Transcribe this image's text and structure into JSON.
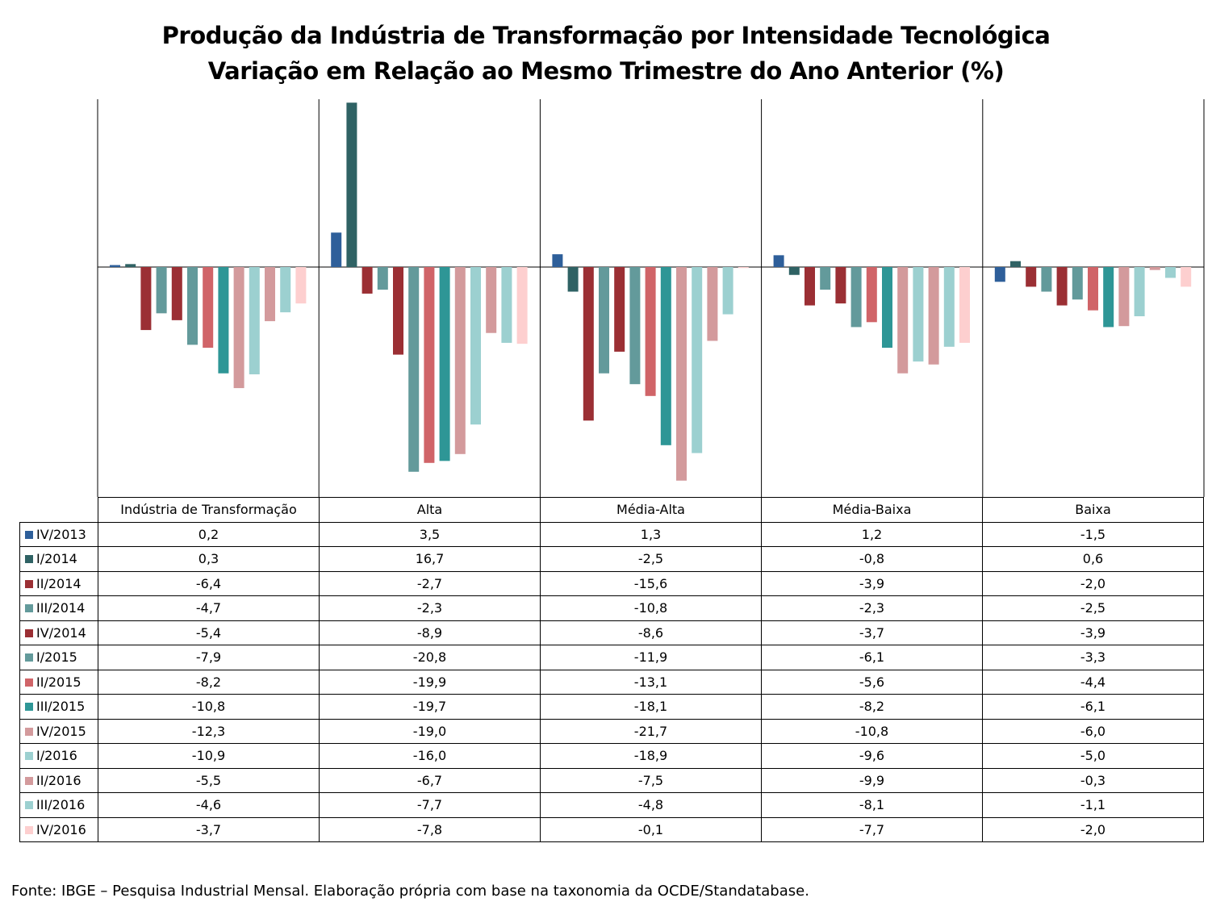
{
  "chart_data": {
    "type": "bar",
    "title": "Produção da Indústria de Transformação por Intensidade Tecnológica",
    "subtitle": "Variação em Relação ao Mesmo Trimestre do Ano Anterior (%)",
    "categories": [
      "Indústria de Transformação",
      "Alta",
      "Média-Alta",
      "Média-Baixa",
      "Baixa"
    ],
    "ylim": [
      -22,
      16.7
    ],
    "grid": false,
    "legend": "table-left",
    "series": [
      {
        "name": "IV/2013",
        "color": "#2e5f9a",
        "values": [
          "0,2",
          "3,5",
          "1,3",
          "1,2",
          "-1,5"
        ]
      },
      {
        "name": "I/2014",
        "color": "#2f6264",
        "values": [
          "0,3",
          "16,7",
          "-2,5",
          "-0,8",
          "0,6"
        ]
      },
      {
        "name": "II/2014",
        "color": "#9b2f34",
        "values": [
          "-6,4",
          "-2,7",
          "-15,6",
          "-3,9",
          "-2,0"
        ]
      },
      {
        "name": "III/2014",
        "color": "#639a9b",
        "values": [
          "-4,7",
          "-2,3",
          "-10,8",
          "-2,3",
          "-2,5"
        ]
      },
      {
        "name": "IV/2014",
        "color": "#9b2f34",
        "values": [
          "-5,4",
          "-8,9",
          "-8,6",
          "-3,7",
          "-3,9"
        ]
      },
      {
        "name": "I/2015",
        "color": "#639a9b",
        "values": [
          "-7,9",
          "-20,8",
          "-11,9",
          "-6,1",
          "-3,3"
        ]
      },
      {
        "name": "II/2015",
        "color": "#d06468",
        "values": [
          "-8,2",
          "-19,9",
          "-13,1",
          "-5,6",
          "-4,4"
        ]
      },
      {
        "name": "III/2015",
        "color": "#2e9696",
        "values": [
          "-10,8",
          "-19,7",
          "-18,1",
          "-8,2",
          "-6,1"
        ]
      },
      {
        "name": "IV/2015",
        "color": "#d39a9c",
        "values": [
          "-12,3",
          "-19,0",
          "-21,7",
          "-10,8",
          "-6,0"
        ]
      },
      {
        "name": "I/2016",
        "color": "#9cd0d0",
        "values": [
          "-10,9",
          "-16,0",
          "-18,9",
          "-9,6",
          "-5,0"
        ]
      },
      {
        "name": "II/2016",
        "color": "#d39a9c",
        "values": [
          "-5,5",
          "-6,7",
          "-7,5",
          "-9,9",
          "-0,3"
        ]
      },
      {
        "name": "III/2016",
        "color": "#9cd0d0",
        "values": [
          "-4,6",
          "-7,7",
          "-4,8",
          "-8,1",
          "-1,1"
        ]
      },
      {
        "name": "IV/2016",
        "color": "#fdcfcf",
        "values": [
          "-3,7",
          "-7,8",
          "-0,1",
          "-7,7",
          "-2,0"
        ]
      }
    ]
  },
  "source_note": "Fonte: IBGE – Pesquisa Industrial Mensal. Elaboração própria com base na taxonomia da OCDE/Standatabase."
}
